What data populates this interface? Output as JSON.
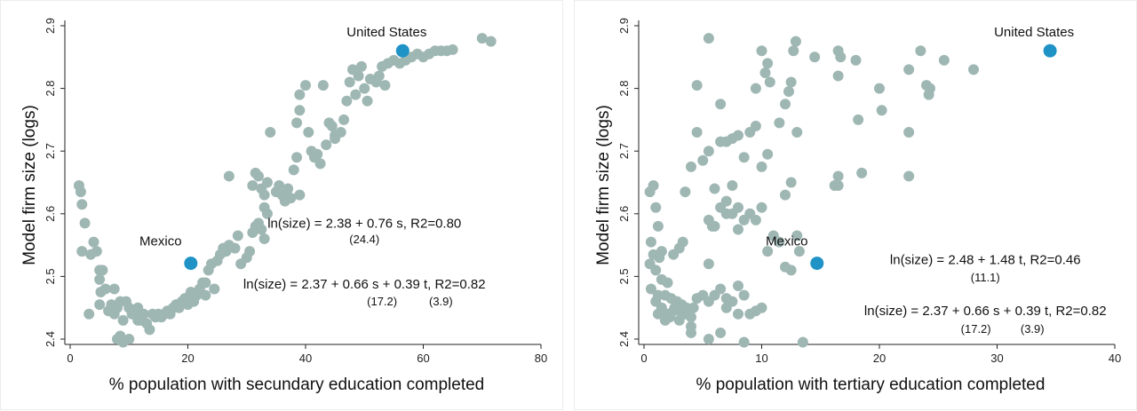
{
  "chart_data": [
    {
      "type": "scatter",
      "xlabel": "% population with secundary education completed",
      "ylabel": "Model firm size (logs)",
      "xlim": [
        0,
        80
      ],
      "ylim": [
        2.4,
        2.9
      ],
      "xticks": [
        0,
        20,
        40,
        60,
        80
      ],
      "yticks": [
        2.4,
        2.5,
        2.6,
        2.7,
        2.8,
        2.9
      ],
      "grid": false,
      "colors": {
        "points": "#9fb7b3",
        "highlight": "#1f93c6"
      },
      "highlights": [
        {
          "label": "United States",
          "x": 56.5,
          "y": 2.86
        },
        {
          "label": "Mexico",
          "x": 20.5,
          "y": 2.521
        }
      ],
      "annotations": [
        {
          "text": "ln(size) = 2.38 + 0.76 s,  R2=0.80",
          "x": 50,
          "y": 2.578
        },
        {
          "text": "(24.4)",
          "x": 50,
          "y": 2.553
        },
        {
          "text": "ln(size) = 2.37 + 0.66 s + 0.39 t,  R2=0.82",
          "x": 50,
          "y": 2.481
        },
        {
          "text": "(17.2)",
          "x": 53,
          "y": 2.454
        },
        {
          "text": "(3.9)",
          "x": 63,
          "y": 2.454
        }
      ],
      "points": [
        [
          1.5,
          2.645
        ],
        [
          1.8,
          2.635
        ],
        [
          2,
          2.615
        ],
        [
          2.5,
          2.585
        ],
        [
          2,
          2.54
        ],
        [
          3.5,
          2.535
        ],
        [
          4,
          2.555
        ],
        [
          4.5,
          2.54
        ],
        [
          5,
          2.51
        ],
        [
          5.5,
          2.51
        ],
        [
          5,
          2.495
        ],
        [
          6,
          2.48
        ],
        [
          5.2,
          2.475
        ],
        [
          3.2,
          2.44
        ],
        [
          5,
          2.455
        ],
        [
          6.5,
          2.445
        ],
        [
          7,
          2.455
        ],
        [
          7.5,
          2.44
        ],
        [
          8,
          2.45
        ],
        [
          8.5,
          2.46
        ],
        [
          9,
          2.43
        ],
        [
          9.5,
          2.46
        ],
        [
          10,
          2.45
        ],
        [
          10.5,
          2.44
        ],
        [
          7.5,
          2.48
        ],
        [
          8,
          2.4
        ],
        [
          8.5,
          2.405
        ],
        [
          9,
          2.395
        ],
        [
          10,
          2.4
        ],
        [
          11,
          2.44
        ],
        [
          11.5,
          2.45
        ],
        [
          12,
          2.43
        ],
        [
          12.5,
          2.44
        ],
        [
          13,
          2.425
        ],
        [
          13.5,
          2.415
        ],
        [
          14,
          2.44
        ],
        [
          14.5,
          2.435
        ],
        [
          15,
          2.44
        ],
        [
          15.5,
          2.435
        ],
        [
          16,
          2.44
        ],
        [
          16.5,
          2.445
        ],
        [
          17,
          2.44
        ],
        [
          17.5,
          2.45
        ],
        [
          18,
          2.455
        ],
        [
          18.5,
          2.45
        ],
        [
          19,
          2.46
        ],
        [
          19.5,
          2.465
        ],
        [
          20,
          2.455
        ],
        [
          20.5,
          2.475
        ],
        [
          21,
          2.46
        ],
        [
          21.5,
          2.47
        ],
        [
          22,
          2.48
        ],
        [
          22.5,
          2.49
        ],
        [
          23,
          2.47
        ],
        [
          23.5,
          2.51
        ],
        [
          24,
          2.52
        ],
        [
          24.5,
          2.48
        ],
        [
          25,
          2.525
        ],
        [
          25.5,
          2.535
        ],
        [
          26,
          2.545
        ],
        [
          27,
          2.55
        ],
        [
          28,
          2.545
        ],
        [
          28.5,
          2.565
        ],
        [
          29,
          2.52
        ],
        [
          30,
          2.53
        ],
        [
          30.5,
          2.54
        ],
        [
          31,
          2.57
        ],
        [
          31.5,
          2.58
        ],
        [
          32,
          2.585
        ],
        [
          32.5,
          2.575
        ],
        [
          33,
          2.56
        ],
        [
          33.5,
          2.6
        ],
        [
          33,
          2.61
        ],
        [
          31,
          2.645
        ],
        [
          31.5,
          2.665
        ],
        [
          32,
          2.66
        ],
        [
          32.5,
          2.64
        ],
        [
          33,
          2.63
        ],
        [
          33.5,
          2.65
        ],
        [
          34,
          2.73
        ],
        [
          35,
          2.635
        ],
        [
          35.5,
          2.645
        ],
        [
          36,
          2.63
        ],
        [
          36.5,
          2.62
        ],
        [
          37,
          2.64
        ],
        [
          37.5,
          2.625
        ],
        [
          38,
          2.67
        ],
        [
          38.5,
          2.69
        ],
        [
          39,
          2.63
        ],
        [
          38.5,
          2.745
        ],
        [
          39,
          2.765
        ],
        [
          39,
          2.79
        ],
        [
          40,
          2.805
        ],
        [
          40.5,
          2.73
        ],
        [
          41,
          2.7
        ],
        [
          41.5,
          2.69
        ],
        [
          42,
          2.695
        ],
        [
          42.5,
          2.68
        ],
        [
          43,
          2.805
        ],
        [
          43.5,
          2.71
        ],
        [
          44,
          2.745
        ],
        [
          44.5,
          2.74
        ],
        [
          45,
          2.725
        ],
        [
          45,
          2.72
        ],
        [
          46,
          2.73
        ],
        [
          46.5,
          2.75
        ],
        [
          47,
          2.78
        ],
        [
          47.5,
          2.81
        ],
        [
          48,
          2.83
        ],
        [
          48.5,
          2.79
        ],
        [
          49,
          2.82
        ],
        [
          49.5,
          2.835
        ],
        [
          50,
          2.8
        ],
        [
          50.5,
          2.78
        ],
        [
          51,
          2.815
        ],
        [
          52,
          2.81
        ],
        [
          52.5,
          2.82
        ],
        [
          53,
          2.835
        ],
        [
          53.5,
          2.805
        ],
        [
          54,
          2.84
        ],
        [
          55,
          2.845
        ],
        [
          56,
          2.84
        ],
        [
          57,
          2.845
        ],
        [
          58,
          2.85
        ],
        [
          59,
          2.855
        ],
        [
          60,
          2.85
        ],
        [
          61,
          2.855
        ],
        [
          62,
          2.86
        ],
        [
          63,
          2.86
        ],
        [
          64,
          2.86
        ],
        [
          65,
          2.862
        ],
        [
          70,
          2.88
        ],
        [
          71.5,
          2.875
        ],
        [
          27,
          2.66
        ],
        [
          26.5,
          2.54
        ],
        [
          23,
          2.49
        ],
        [
          11.5,
          2.43
        ]
      ]
    },
    {
      "type": "scatter",
      "xlabel": "% population with tertiary education completed",
      "ylabel": "Model firm size (logs)",
      "xlim": [
        0,
        40
      ],
      "ylim": [
        2.4,
        2.9
      ],
      "xticks": [
        0,
        10,
        20,
        30,
        40
      ],
      "yticks": [
        2.4,
        2.5,
        2.6,
        2.7,
        2.8,
        2.9
      ],
      "grid": false,
      "colors": {
        "points": "#9fb7b3",
        "highlight": "#1f93c6"
      },
      "highlights": [
        {
          "label": "United States",
          "x": 34.5,
          "y": 2.86
        },
        {
          "label": "Mexico",
          "x": 14.7,
          "y": 2.521
        }
      ],
      "annotations": [
        {
          "text": "ln(size) = 2.48 + 1.48 t,  R2=0.46",
          "x": 29,
          "y": 2.52
        },
        {
          "text": "(11.1)",
          "x": 29,
          "y": 2.492
        },
        {
          "text": "ln(size) = 2.37 + 0.66 s + 0.39 t,  R2=0.82",
          "x": 29,
          "y": 2.438
        },
        {
          "text": "(17.2)",
          "x": 28.2,
          "y": 2.41
        },
        {
          "text": "(3.9)",
          "x": 33,
          "y": 2.41
        }
      ],
      "points": [
        [
          0.5,
          2.635
        ],
        [
          0.8,
          2.645
        ],
        [
          1,
          2.61
        ],
        [
          1.2,
          2.58
        ],
        [
          0.6,
          2.555
        ],
        [
          1.5,
          2.54
        ],
        [
          0.8,
          2.535
        ],
        [
          1.3,
          2.53
        ],
        [
          0.5,
          2.52
        ],
        [
          1,
          2.51
        ],
        [
          1.5,
          2.495
        ],
        [
          2,
          2.49
        ],
        [
          0.6,
          2.48
        ],
        [
          1.2,
          2.47
        ],
        [
          1.8,
          2.47
        ],
        [
          2.3,
          2.465
        ],
        [
          2.8,
          2.46
        ],
        [
          3.2,
          2.455
        ],
        [
          3.6,
          2.45
        ],
        [
          1,
          2.46
        ],
        [
          1.5,
          2.45
        ],
        [
          2,
          2.44
        ],
        [
          2.5,
          2.445
        ],
        [
          3,
          2.43
        ],
        [
          3.5,
          2.44
        ],
        [
          4,
          2.435
        ],
        [
          1.2,
          2.44
        ],
        [
          1.8,
          2.43
        ],
        [
          2.2,
          2.435
        ],
        [
          2.6,
          2.45
        ],
        [
          3.1,
          2.445
        ],
        [
          3.8,
          2.44
        ],
        [
          4,
          2.42
        ],
        [
          4,
          2.41
        ],
        [
          4.2,
          2.45
        ],
        [
          4.5,
          2.465
        ],
        [
          5,
          2.47
        ],
        [
          5.5,
          2.46
        ],
        [
          6,
          2.47
        ],
        [
          6.5,
          2.48
        ],
        [
          7,
          2.465
        ],
        [
          7.5,
          2.46
        ],
        [
          8,
          2.44
        ],
        [
          8,
          2.485
        ],
        [
          8.5,
          2.47
        ],
        [
          9,
          2.44
        ],
        [
          9.5,
          2.445
        ],
        [
          10,
          2.45
        ],
        [
          5.5,
          2.52
        ],
        [
          6,
          2.58
        ],
        [
          5.5,
          2.59
        ],
        [
          5.8,
          2.58
        ],
        [
          6,
          2.64
        ],
        [
          6.5,
          2.61
        ],
        [
          7,
          2.62
        ],
        [
          7,
          2.6
        ],
        [
          7.5,
          2.6
        ],
        [
          7.5,
          2.645
        ],
        [
          8,
          2.61
        ],
        [
          8.5,
          2.59
        ],
        [
          9,
          2.6
        ],
        [
          9.5,
          2.59
        ],
        [
          3,
          2.545
        ],
        [
          3.3,
          2.555
        ],
        [
          2.5,
          2.535
        ],
        [
          3.5,
          2.635
        ],
        [
          4,
          2.675
        ],
        [
          4.5,
          2.73
        ],
        [
          5,
          2.685
        ],
        [
          5.5,
          2.7
        ],
        [
          6.5,
          2.715
        ],
        [
          7,
          2.715
        ],
        [
          7.5,
          2.72
        ],
        [
          8,
          2.725
        ],
        [
          8.5,
          2.69
        ],
        [
          9,
          2.73
        ],
        [
          9.5,
          2.74
        ],
        [
          10,
          2.675
        ],
        [
          10.5,
          2.695
        ],
        [
          10,
          2.61
        ],
        [
          10.5,
          2.54
        ],
        [
          11,
          2.565
        ],
        [
          11.5,
          2.555
        ],
        [
          12,
          2.515
        ],
        [
          12.5,
          2.51
        ],
        [
          12.5,
          2.65
        ],
        [
          12,
          2.63
        ],
        [
          13,
          2.565
        ],
        [
          13.2,
          2.54
        ],
        [
          13.5,
          2.395
        ],
        [
          4.5,
          2.805
        ],
        [
          6.5,
          2.775
        ],
        [
          5.5,
          2.88
        ],
        [
          9.5,
          2.8
        ],
        [
          10.3,
          2.825
        ],
        [
          10.5,
          2.84
        ],
        [
          10.7,
          2.81
        ],
        [
          10,
          2.86
        ],
        [
          11.5,
          2.745
        ],
        [
          12,
          2.775
        ],
        [
          12.3,
          2.795
        ],
        [
          12.5,
          2.81
        ],
        [
          12.7,
          2.86
        ],
        [
          12.9,
          2.875
        ],
        [
          13,
          2.73
        ],
        [
          14.5,
          2.85
        ],
        [
          16.5,
          2.86
        ],
        [
          16.7,
          2.85
        ],
        [
          16.5,
          2.82
        ],
        [
          16.5,
          2.66
        ],
        [
          16.5,
          2.645
        ],
        [
          16.2,
          2.645
        ],
        [
          18,
          2.845
        ],
        [
          18.2,
          2.75
        ],
        [
          18.5,
          2.665
        ],
        [
          20,
          2.8
        ],
        [
          20.2,
          2.765
        ],
        [
          22.5,
          2.83
        ],
        [
          22.5,
          2.73
        ],
        [
          22.5,
          2.66
        ],
        [
          23.5,
          2.86
        ],
        [
          24,
          2.805
        ],
        [
          24.3,
          2.8
        ],
        [
          24.2,
          2.79
        ],
        [
          25.5,
          2.845
        ],
        [
          28,
          2.83
        ],
        [
          8.5,
          2.395
        ],
        [
          8,
          2.575
        ],
        [
          7,
          2.45
        ],
        [
          6.5,
          2.41
        ],
        [
          5.5,
          2.4
        ]
      ]
    }
  ]
}
